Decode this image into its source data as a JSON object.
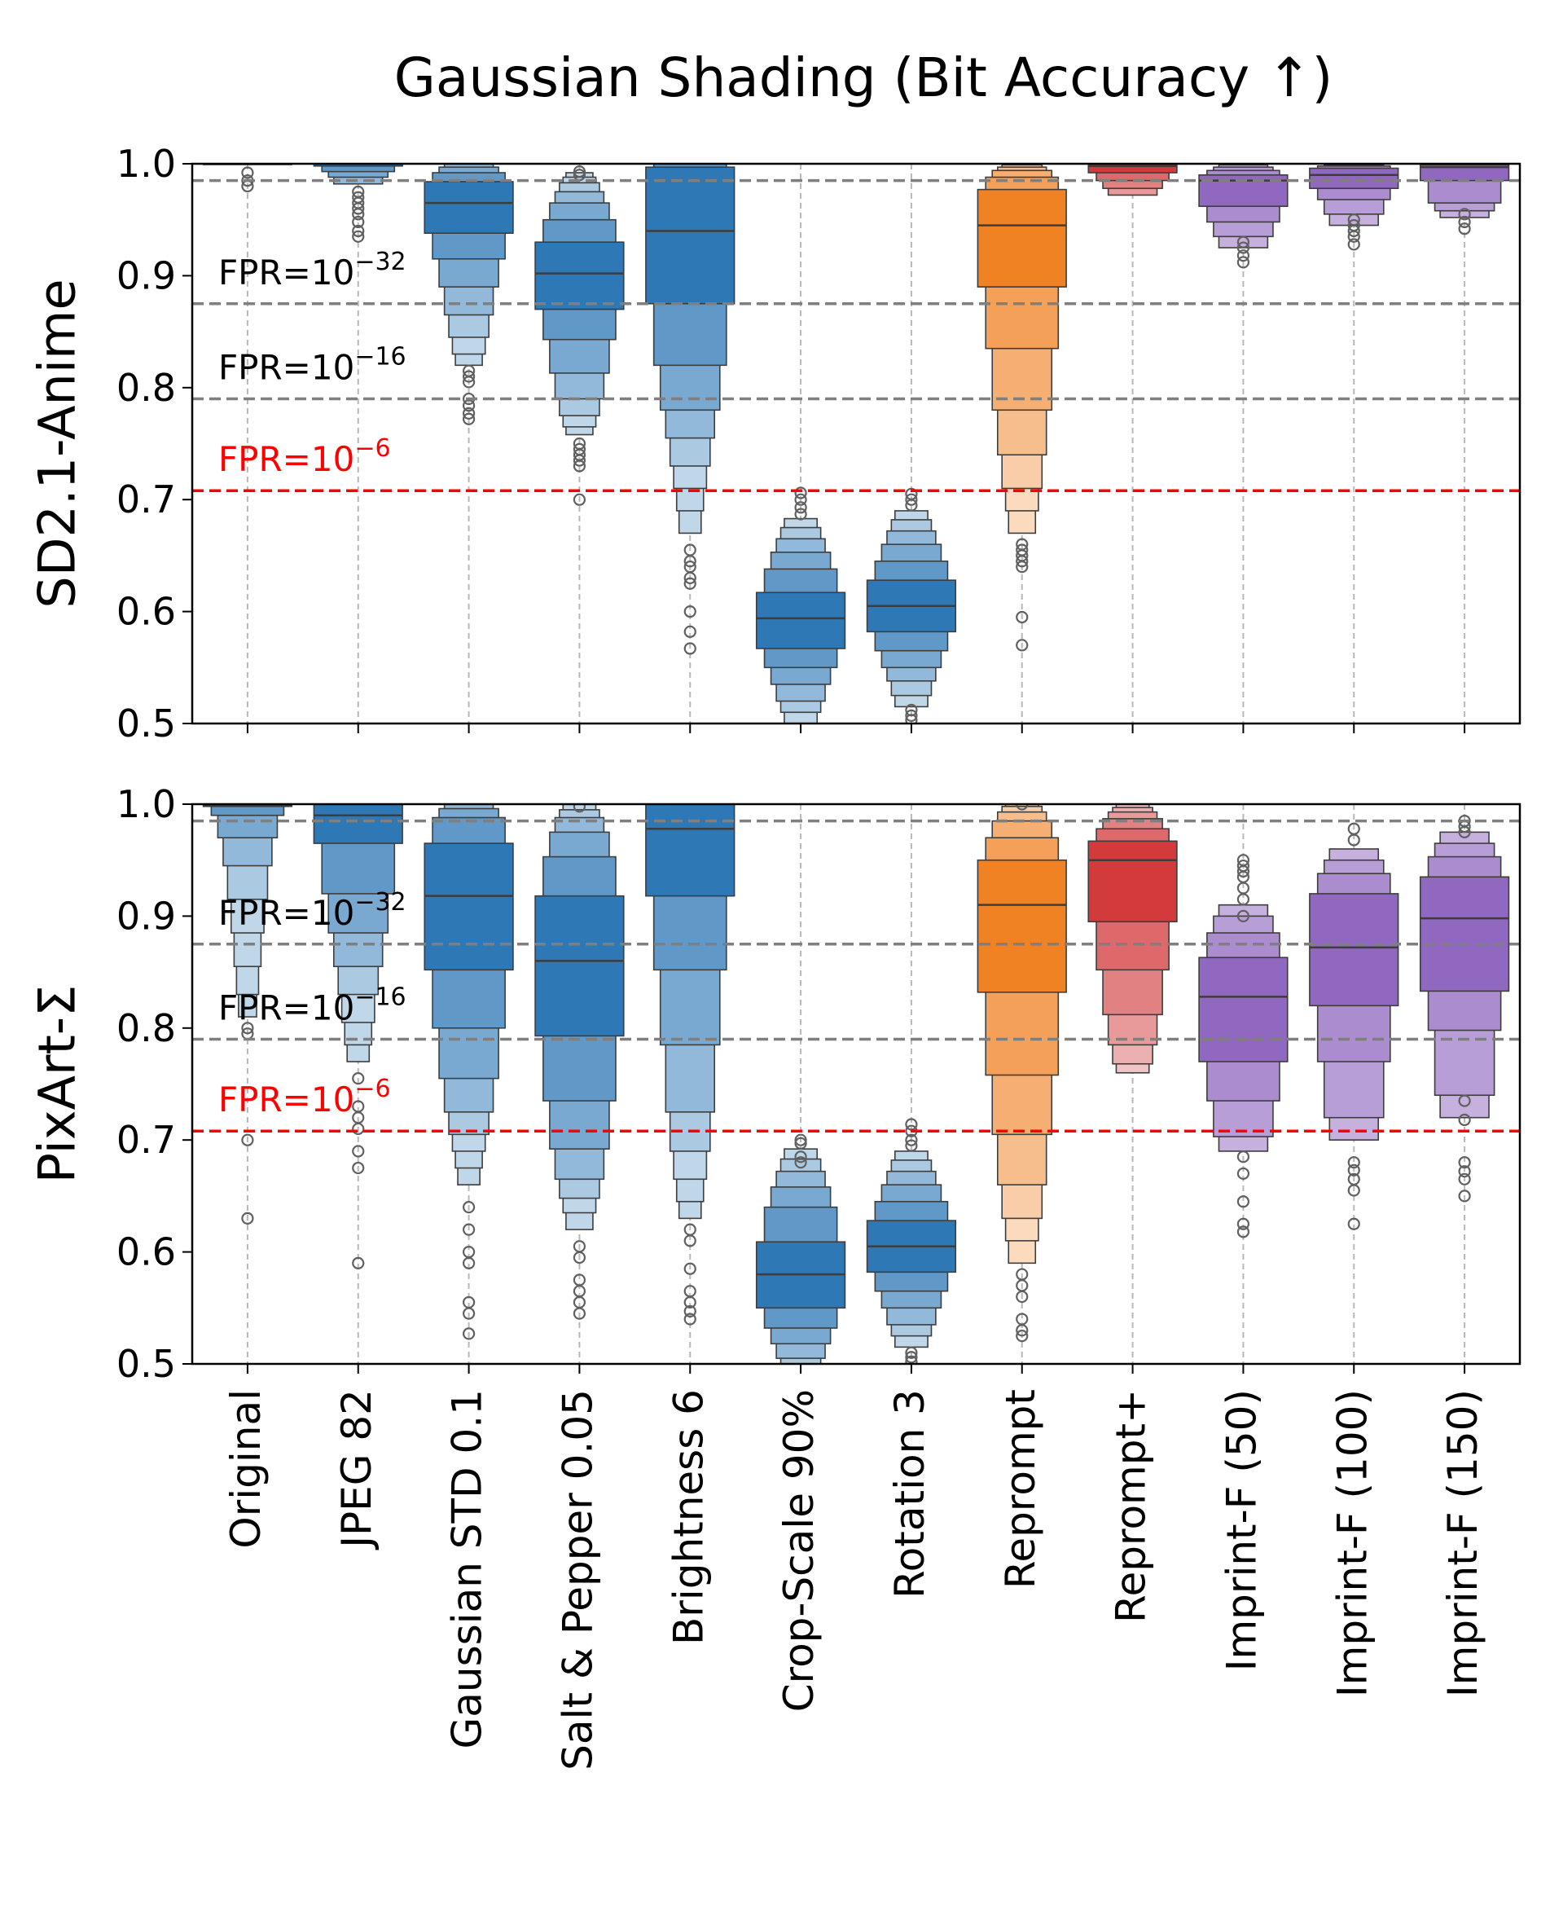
{
  "chart_data": {
    "type": "boxen",
    "title": "Gaussian Shading (Bit Accuracy ↑)",
    "ylim": [
      0.5,
      1.0
    ],
    "yticks": [
      "0.5",
      "0.6",
      "0.7",
      "0.8",
      "0.9",
      "1.0"
    ],
    "categories": [
      "Original",
      "JPEG 82",
      "Gaussian STD 0.1",
      "Salt & Pepper 0.05",
      "Brightness 6",
      "Crop-Scale 90%",
      "Rotation 3",
      "Reprompt",
      "Reprompt+",
      "Imprint-F (50)",
      "Imprint-F (100)",
      "Imprint-F (150)"
    ],
    "colors": {
      "blue": "#2e78b5",
      "orange": "#f08224",
      "red": "#d23a3c",
      "purple": "#9068c0",
      "outlier": "#606060",
      "threshold_gray": "#7f7f7f",
      "threshold_red": "#ff0000"
    },
    "category_colors": [
      "blue",
      "blue",
      "blue",
      "blue",
      "blue",
      "blue",
      "blue",
      "orange",
      "red",
      "purple",
      "purple",
      "purple"
    ],
    "thresholds": [
      {
        "label_base": "FPR=10",
        "label_exp": "−32",
        "y": 0.875,
        "color": "gray"
      },
      {
        "label_base": "FPR=10",
        "label_exp": "−16",
        "y": 0.79,
        "color": "gray"
      },
      {
        "label_base": "FPR=10",
        "label_exp": "−6",
        "y": 0.708,
        "color": "red"
      }
    ],
    "top_line": 0.985,
    "panels": [
      {
        "ylabel": "SD2.1-Anime",
        "series": [
          {
            "category": "Original",
            "median": 1.0,
            "levels": [
              [
                1.0,
                1.0
              ]
            ],
            "outliers": [
              0.992,
              0.985,
              0.98
            ]
          },
          {
            "category": "JPEG 82",
            "median": 1.0,
            "levels": [
              [
                0.998,
                1.0
              ],
              [
                0.993,
                1.0
              ],
              [
                0.988,
                1.0
              ],
              [
                0.982,
                1.0
              ]
            ],
            "outliers": [
              0.975,
              0.97,
              0.965,
              0.96,
              0.955,
              0.948,
              0.94,
              0.935
            ]
          },
          {
            "category": "Gaussian STD 0.1",
            "median": 0.965,
            "levels": [
              [
                0.938,
                0.984
              ],
              [
                0.915,
                0.992
              ],
              [
                0.89,
                0.997
              ],
              [
                0.865,
                1.0
              ],
              [
                0.845,
                1.0
              ],
              [
                0.83,
                1.0
              ],
              [
                0.82,
                1.0
              ]
            ],
            "outliers": [
              0.815,
              0.81,
              0.805,
              0.79,
              0.784,
              0.777,
              0.772
            ]
          },
          {
            "category": "Salt & Pepper 0.05",
            "median": 0.902,
            "levels": [
              [
                0.87,
                0.93
              ],
              [
                0.843,
                0.95
              ],
              [
                0.813,
                0.965
              ],
              [
                0.79,
                0.975
              ],
              [
                0.775,
                0.983
              ],
              [
                0.765,
                0.988
              ],
              [
                0.758,
                0.992
              ]
            ],
            "outliers": [
              0.75,
              0.745,
              0.74,
              0.735,
              0.73,
              0.7,
              0.99,
              0.993
            ]
          },
          {
            "category": "Brightness 6",
            "median": 0.94,
            "levels": [
              [
                0.875,
                0.997
              ],
              [
                0.82,
                1.0
              ],
              [
                0.78,
                1.0
              ],
              [
                0.755,
                1.0
              ],
              [
                0.73,
                1.0
              ],
              [
                0.71,
                1.0
              ],
              [
                0.69,
                1.0
              ],
              [
                0.67,
                1.0
              ]
            ],
            "outliers": [
              0.655,
              0.645,
              0.64,
              0.63,
              0.625,
              0.6,
              0.582,
              0.567
            ]
          },
          {
            "category": "Crop-Scale 90%",
            "median": 0.594,
            "levels": [
              [
                0.567,
                0.617
              ],
              [
                0.55,
                0.638
              ],
              [
                0.535,
                0.653
              ],
              [
                0.52,
                0.665
              ],
              [
                0.51,
                0.675
              ],
              [
                0.5,
                0.683
              ]
            ],
            "outliers": [
              0.687,
              0.693,
              0.7,
              0.706
            ]
          },
          {
            "category": "Rotation 3",
            "median": 0.605,
            "levels": [
              [
                0.582,
                0.628
              ],
              [
                0.565,
                0.645
              ],
              [
                0.55,
                0.66
              ],
              [
                0.538,
                0.672
              ],
              [
                0.525,
                0.682
              ],
              [
                0.515,
                0.69
              ]
            ],
            "outliers": [
              0.695,
              0.7,
              0.705,
              0.512,
              0.507,
              0.503
            ]
          },
          {
            "category": "Reprompt",
            "median": 0.945,
            "levels": [
              [
                0.89,
                0.977
              ],
              [
                0.835,
                0.988
              ],
              [
                0.78,
                0.994
              ],
              [
                0.74,
                0.997
              ],
              [
                0.71,
                0.999
              ],
              [
                0.69,
                1.0
              ],
              [
                0.67,
                1.0
              ]
            ],
            "outliers": [
              0.66,
              0.655,
              0.65,
              0.645,
              0.64,
              0.595,
              0.57
            ]
          },
          {
            "category": "Reprompt+",
            "median": 0.998,
            "levels": [
              [
                0.992,
                1.0
              ],
              [
                0.985,
                1.0
              ],
              [
                0.978,
                1.0
              ],
              [
                0.972,
                1.0
              ]
            ],
            "outliers": []
          },
          {
            "category": "Imprint-F (50)",
            "median": 0.985,
            "levels": [
              [
                0.962,
                0.99
              ],
              [
                0.948,
                0.994
              ],
              [
                0.935,
                0.997
              ],
              [
                0.925,
                0.999
              ]
            ],
            "outliers": [
              0.93,
              0.925,
              0.918,
              0.912
            ]
          },
          {
            "category": "Imprint-F (100)",
            "median": 0.99,
            "levels": [
              [
                0.978,
                0.996
              ],
              [
                0.968,
                0.998
              ],
              [
                0.955,
                0.999
              ],
              [
                0.945,
                1.0
              ]
            ],
            "outliers": [
              0.95,
              0.945,
              0.94,
              0.935,
              0.928
            ]
          },
          {
            "category": "Imprint-F (150)",
            "median": 0.997,
            "levels": [
              [
                0.985,
                0.999
              ],
              [
                0.965,
                1.0
              ],
              [
                0.958,
                1.0
              ],
              [
                0.952,
                1.0
              ]
            ],
            "outliers": [
              0.955,
              0.948,
              0.942
            ]
          }
        ]
      },
      {
        "ylabel": "PixArt-Σ",
        "series": [
          {
            "category": "Original",
            "median": 0.999,
            "levels": [
              [
                0.998,
                1.0
              ],
              [
                0.99,
                1.0
              ],
              [
                0.97,
                1.0
              ],
              [
                0.945,
                1.0
              ],
              [
                0.915,
                1.0
              ],
              [
                0.885,
                1.0
              ],
              [
                0.855,
                1.0
              ],
              [
                0.83,
                1.0
              ],
              [
                0.81,
                1.0
              ]
            ],
            "outliers": [
              0.8,
              0.795,
              0.7,
              0.63
            ]
          },
          {
            "category": "JPEG 82",
            "median": 0.99,
            "levels": [
              [
                0.965,
                1.0
              ],
              [
                0.92,
                1.0
              ],
              [
                0.885,
                1.0
              ],
              [
                0.855,
                1.0
              ],
              [
                0.83,
                1.0
              ],
              [
                0.805,
                1.0
              ],
              [
                0.785,
                1.0
              ],
              [
                0.77,
                1.0
              ]
            ],
            "outliers": [
              0.755,
              0.73,
              0.72,
              0.71,
              0.69,
              0.675,
              0.59
            ]
          },
          {
            "category": "Gaussian STD 0.1",
            "median": 0.918,
            "levels": [
              [
                0.852,
                0.965
              ],
              [
                0.8,
                0.988
              ],
              [
                0.755,
                0.996
              ],
              [
                0.725,
                1.0
              ],
              [
                0.705,
                1.0
              ],
              [
                0.69,
                1.0
              ],
              [
                0.675,
                1.0
              ],
              [
                0.66,
                1.0
              ]
            ],
            "outliers": [
              0.64,
              0.62,
              0.6,
              0.59,
              0.555,
              0.545,
              0.527
            ]
          },
          {
            "category": "Salt & Pepper 0.05",
            "median": 0.86,
            "levels": [
              [
                0.793,
                0.918
              ],
              [
                0.735,
                0.953
              ],
              [
                0.692,
                0.975
              ],
              [
                0.665,
                0.988
              ],
              [
                0.648,
                0.995
              ],
              [
                0.635,
                1.0
              ],
              [
                0.62,
                1.0
              ]
            ],
            "outliers": [
              0.605,
              0.595,
              0.575,
              0.565,
              0.555,
              0.545,
              0.998
            ]
          },
          {
            "category": "Brightness 6",
            "median": 0.978,
            "levels": [
              [
                0.918,
                1.0
              ],
              [
                0.852,
                1.0
              ],
              [
                0.785,
                1.0
              ],
              [
                0.725,
                1.0
              ],
              [
                0.69,
                1.0
              ],
              [
                0.665,
                1.0
              ],
              [
                0.645,
                1.0
              ],
              [
                0.63,
                1.0
              ]
            ],
            "outliers": [
              0.62,
              0.61,
              0.585,
              0.565,
              0.555,
              0.547,
              0.54
            ]
          },
          {
            "category": "Crop-Scale 90%",
            "median": 0.58,
            "levels": [
              [
                0.55,
                0.609
              ],
              [
                0.532,
                0.64
              ],
              [
                0.518,
                0.658
              ],
              [
                0.505,
                0.672
              ],
              [
                0.5,
                0.683
              ],
              [
                0.5,
                0.692
              ]
            ],
            "outliers": [
              0.697,
              0.7,
              0.685,
              0.68
            ]
          },
          {
            "category": "Rotation 3",
            "median": 0.605,
            "levels": [
              [
                0.582,
                0.628
              ],
              [
                0.565,
                0.645
              ],
              [
                0.55,
                0.66
              ],
              [
                0.535,
                0.672
              ],
              [
                0.525,
                0.682
              ],
              [
                0.515,
                0.69
              ]
            ],
            "outliers": [
              0.695,
              0.7,
              0.708,
              0.714,
              0.51,
              0.506,
              0.502
            ]
          },
          {
            "category": "Reprompt",
            "median": 0.91,
            "levels": [
              [
                0.832,
                0.95
              ],
              [
                0.758,
                0.97
              ],
              [
                0.705,
                0.985
              ],
              [
                0.66,
                0.993
              ],
              [
                0.63,
                0.998
              ],
              [
                0.61,
                1.0
              ],
              [
                0.59,
                1.0
              ]
            ],
            "outliers": [
              0.58,
              0.57,
              0.56,
              0.54,
              0.53,
              0.525,
              1.0
            ]
          },
          {
            "category": "Reprompt+",
            "median": 0.95,
            "levels": [
              [
                0.895,
                0.967
              ],
              [
                0.852,
                0.978
              ],
              [
                0.812,
                0.987
              ],
              [
                0.785,
                0.993
              ],
              [
                0.768,
                0.997
              ],
              [
                0.76,
                1.0
              ]
            ],
            "outliers": []
          },
          {
            "category": "Imprint-F (50)",
            "median": 0.828,
            "levels": [
              [
                0.77,
                0.863
              ],
              [
                0.735,
                0.885
              ],
              [
                0.703,
                0.9
              ],
              [
                0.69,
                0.91
              ]
            ],
            "outliers": [
              0.685,
              0.67,
              0.645,
              0.625,
              0.618,
              0.95,
              0.945,
              0.94,
              0.935,
              0.925,
              0.915,
              0.9
            ]
          },
          {
            "category": "Imprint-F (100)",
            "median": 0.872,
            "levels": [
              [
                0.82,
                0.92
              ],
              [
                0.77,
                0.938
              ],
              [
                0.72,
                0.95
              ],
              [
                0.7,
                0.96
              ]
            ],
            "outliers": [
              0.68,
              0.673,
              0.665,
              0.655,
              0.625,
              0.978,
              0.968
            ]
          },
          {
            "category": "Imprint-F (150)",
            "median": 0.898,
            "levels": [
              [
                0.833,
                0.935
              ],
              [
                0.798,
                0.953
              ],
              [
                0.74,
                0.965
              ],
              [
                0.72,
                0.975
              ]
            ],
            "outliers": [
              0.735,
              0.718,
              0.68,
              0.672,
              0.665,
              0.65,
              0.985,
              0.98,
              0.975
            ]
          }
        ]
      }
    ]
  }
}
